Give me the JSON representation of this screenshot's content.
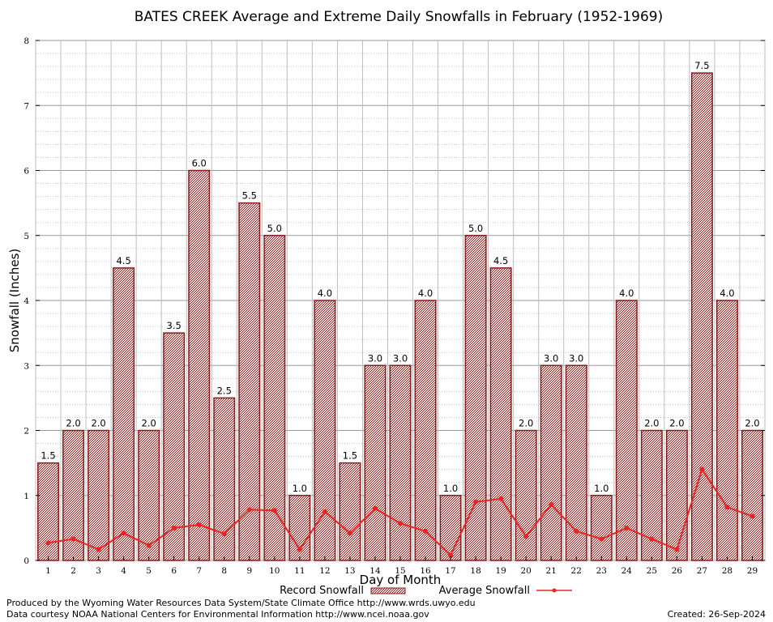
{
  "chart_data": {
    "type": "bar",
    "title": "BATES CREEK Average and Extreme Daily Snowfalls in February (1952-1969)",
    "xlabel": "Day of Month",
    "ylabel": "Snowfall (Inches)",
    "ylim": [
      0,
      8
    ],
    "yticks": [
      "0",
      "1",
      "2",
      "3",
      "4",
      "5",
      "6",
      "7",
      "8"
    ],
    "categories": [
      "1",
      "2",
      "3",
      "4",
      "5",
      "6",
      "7",
      "8",
      "9",
      "10",
      "11",
      "12",
      "13",
      "14",
      "15",
      "16",
      "17",
      "18",
      "19",
      "20",
      "21",
      "22",
      "23",
      "24",
      "25",
      "26",
      "27",
      "28",
      "29"
    ],
    "series": [
      {
        "name": "Record Snowfall",
        "kind": "bar",
        "color": "#b22222",
        "values": [
          1.5,
          2.0,
          2.0,
          4.5,
          2.0,
          3.5,
          6.0,
          2.5,
          5.5,
          5.0,
          1.0,
          4.0,
          1.5,
          3.0,
          3.0,
          4.0,
          1.0,
          5.0,
          4.5,
          2.0,
          3.0,
          3.0,
          1.0,
          4.0,
          2.0,
          2.0,
          7.5,
          4.0,
          2.0
        ],
        "labels": [
          "1.5",
          "2.0",
          "2.0",
          "4.5",
          "2.0",
          "3.5",
          "6.0",
          "2.5",
          "5.5",
          "5.0",
          "1.0",
          "4.0",
          "1.5",
          "3.0",
          "3.0",
          "4.0",
          "1.0",
          "5.0",
          "4.5",
          "2.0",
          "3.0",
          "3.0",
          "1.0",
          "4.0",
          "2.0",
          "2.0",
          "7.5",
          "4.0",
          "2.0"
        ]
      },
      {
        "name": "Average Snowfall",
        "kind": "line",
        "color": "#ee2222",
        "values": [
          0.27,
          0.33,
          0.17,
          0.42,
          0.23,
          0.5,
          0.55,
          0.41,
          0.78,
          0.77,
          0.17,
          0.75,
          0.42,
          0.8,
          0.57,
          0.45,
          0.08,
          0.9,
          0.95,
          0.37,
          0.86,
          0.45,
          0.33,
          0.5,
          0.33,
          0.17,
          1.4,
          0.82,
          0.68
        ]
      }
    ],
    "grid": true,
    "legend": "bottom"
  },
  "footer": {
    "line1": "Produced by the Wyoming Water Resources Data System/State Climate Office http://www.wrds.uwyo.edu",
    "line2": "Data courtesy NOAA National Centers for Environmental Information http://www.ncei.noaa.gov",
    "created": "Created:  26-Sep-2024"
  }
}
